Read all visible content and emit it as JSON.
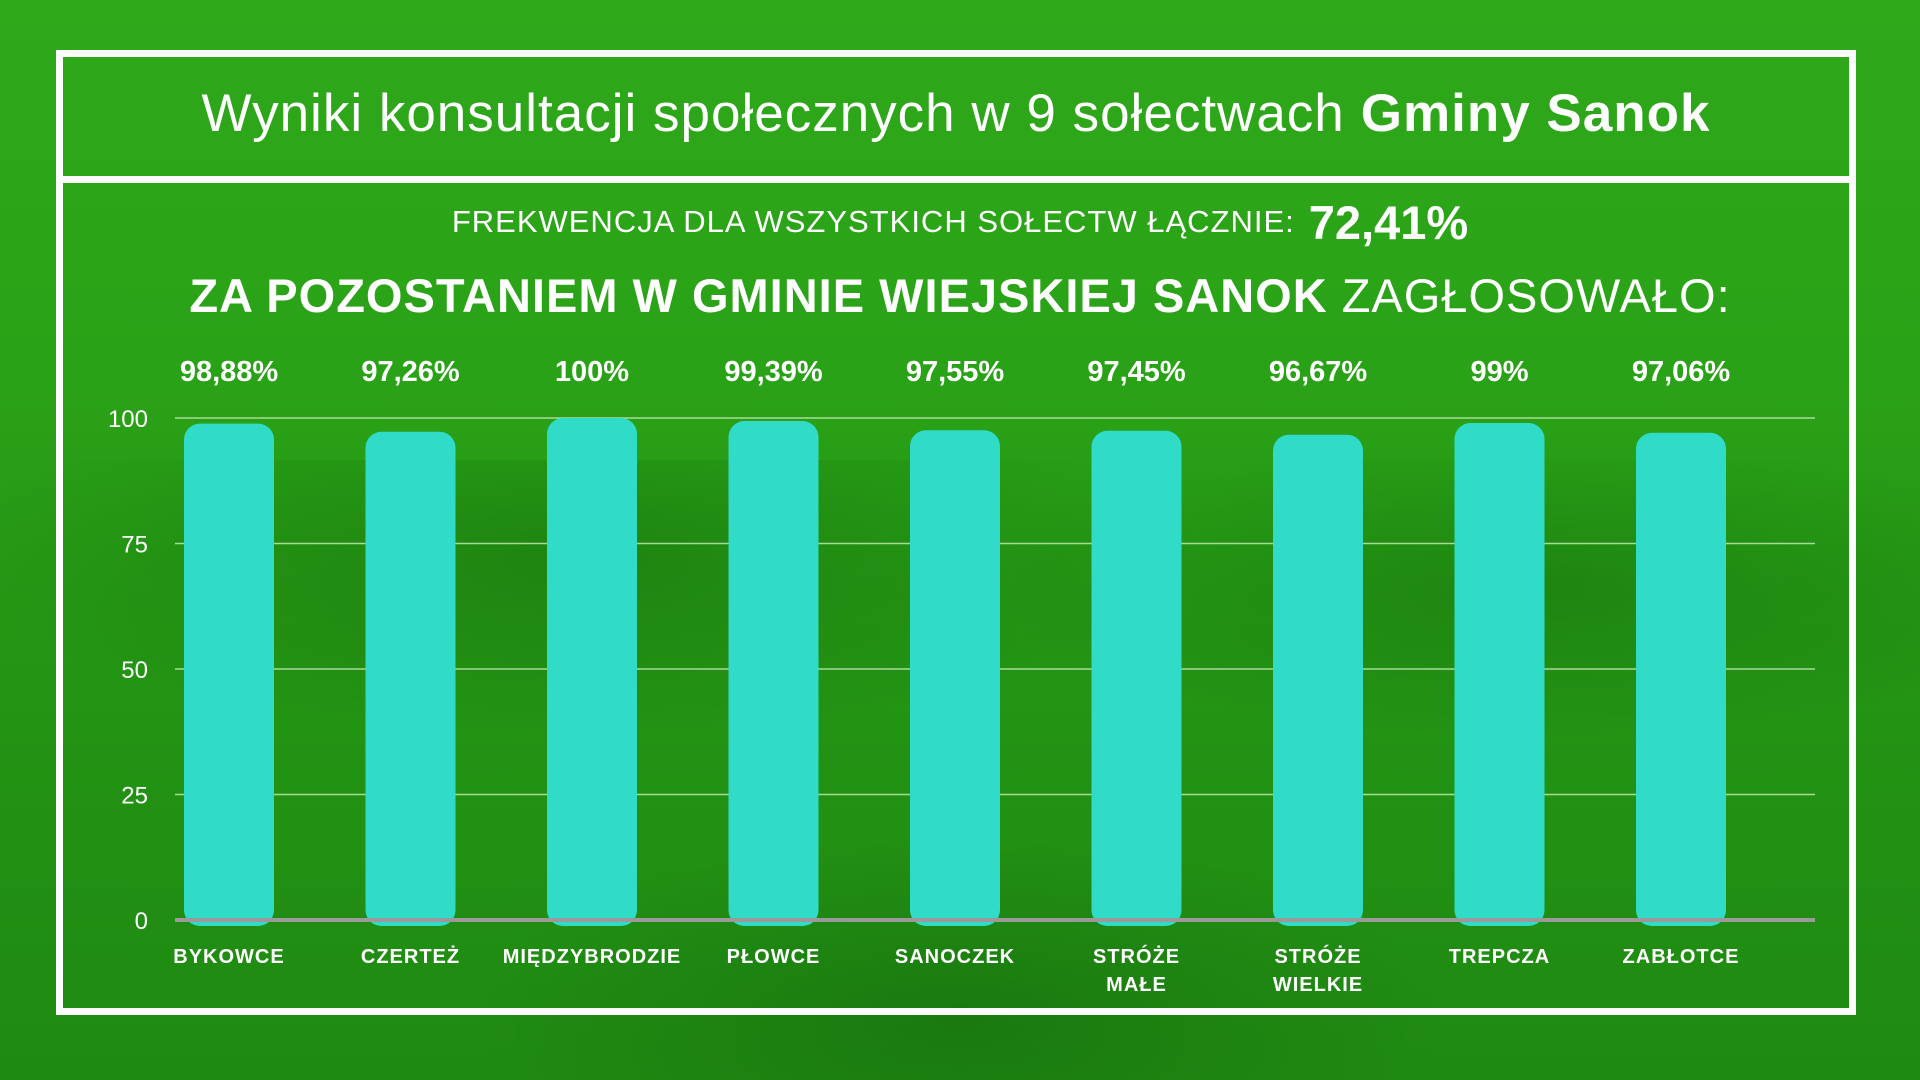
{
  "title": {
    "regular": "Wyniki konsultacji społecznych w 9 sołectwach",
    "bold": "Gminy Sanok"
  },
  "turnout": {
    "label": "FREKWENCJA DLA WSZYSTKICH SOŁECTW ŁĄCZNIE:",
    "value": "72,41%"
  },
  "headline": {
    "bold": "ZA POZOSTANIEM W GMINIE WIEJSKIEJ SANOK",
    "regular": "ZAGŁOSOWAŁO:"
  },
  "colors": {
    "background": "#2aa217",
    "bar": "#30dcc8",
    "text": "#ffffff",
    "gridline": "#bfe8b0",
    "axis": "#9a9a9a"
  },
  "chart_data": {
    "type": "bar",
    "categories": [
      [
        "BYKOWCE"
      ],
      [
        "CZERTEŻ"
      ],
      [
        "MIĘDZYBRODZIE"
      ],
      [
        "PŁOWCE"
      ],
      [
        "SANOCZEK"
      ],
      [
        "STRÓŻE",
        "MAŁE"
      ],
      [
        "STRÓŻE",
        "WIELKIE"
      ],
      [
        "TREPCZA"
      ],
      [
        "ZABŁOTCE"
      ]
    ],
    "values": [
      98.88,
      97.26,
      100,
      99.39,
      97.55,
      97.45,
      96.67,
      99,
      97.06
    ],
    "data_labels": [
      "98,88%",
      "97,26%",
      "100%",
      "99,39%",
      "97,55%",
      "97,45%",
      "96,67%",
      "99%",
      "97,06%"
    ],
    "ylim": [
      0,
      100
    ],
    "yticks": [
      0,
      25,
      50,
      75,
      100
    ],
    "grid": true,
    "legend": "none"
  }
}
